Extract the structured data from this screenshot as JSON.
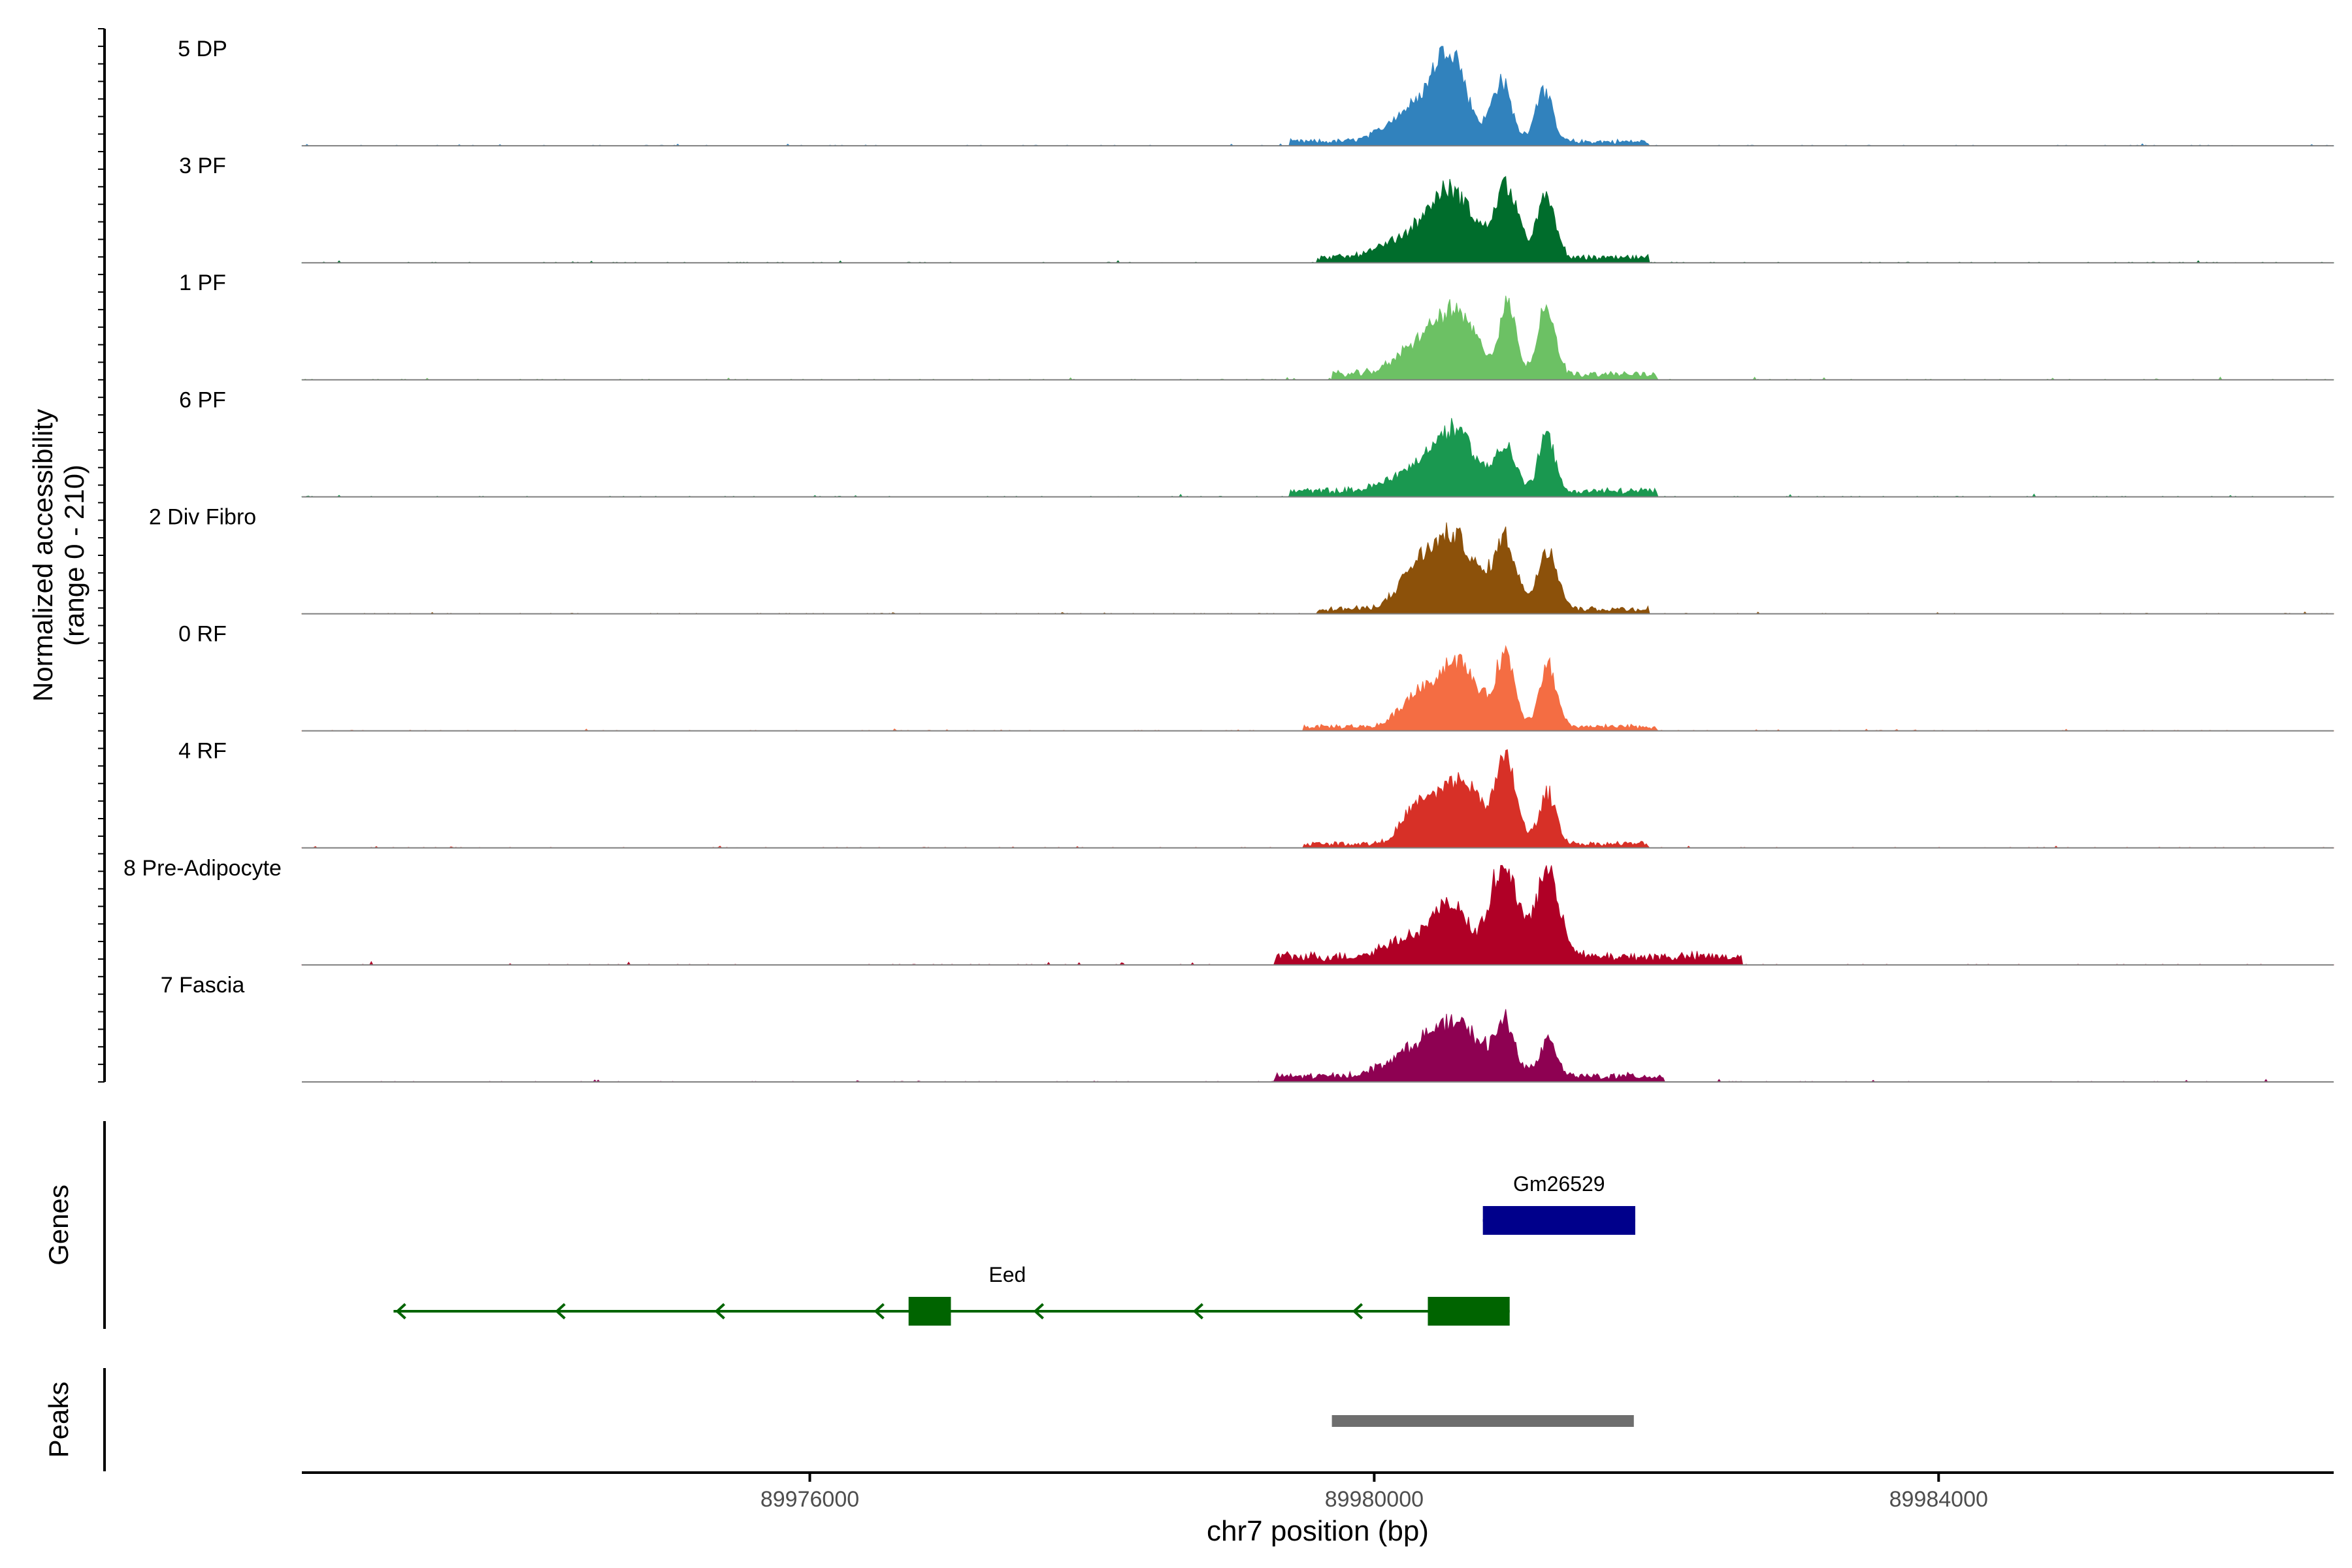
{
  "chart_data": {
    "type": "area",
    "title": "",
    "xlabel": "chr7 position (bp)",
    "ylabel_line1": "Normalized accessibility",
    "ylabel_line2": "(range 0 - 210)",
    "y_range": [
      0,
      210
    ],
    "xlim": [
      89972400,
      89986800
    ],
    "x_ticks": [
      89976000,
      89980000,
      89984000
    ],
    "x_tick_labels": [
      "89976000",
      "89980000",
      "89984000"
    ],
    "tracks": [
      {
        "name": "5 DP",
        "color": "#3182BD",
        "extent": [
          89979400,
          89981950
        ],
        "peaks": [
          [
            89980540,
            0.82,
            110
          ],
          [
            89980900,
            0.6,
            70
          ],
          [
            89981200,
            0.52,
            60
          ],
          [
            89980300,
            0.35,
            180
          ]
        ],
        "noise": 0.05
      },
      {
        "name": "3 PF",
        "color": "#006D2C",
        "extent": [
          89979600,
          89981950
        ],
        "peaks": [
          [
            89980550,
            0.62,
            160
          ],
          [
            89980940,
            0.7,
            80
          ],
          [
            89981220,
            0.6,
            65
          ],
          [
            89980250,
            0.18,
            200
          ]
        ],
        "noise": 0.06
      },
      {
        "name": "1 PF",
        "color": "#6CC164",
        "extent": [
          89979700,
          89982000
        ],
        "peaks": [
          [
            89980580,
            0.58,
            150
          ],
          [
            89980950,
            0.68,
            55
          ],
          [
            89981220,
            0.7,
            60
          ],
          [
            89980300,
            0.25,
            150
          ]
        ],
        "noise": 0.07
      },
      {
        "name": "6 PF",
        "color": "#1A9850",
        "extent": [
          89979400,
          89982000
        ],
        "peaks": [
          [
            89980580,
            0.56,
            140
          ],
          [
            89980930,
            0.45,
            70
          ],
          [
            89981220,
            0.58,
            55
          ],
          [
            89980300,
            0.22,
            180
          ]
        ],
        "noise": 0.07
      },
      {
        "name": "2 Div Fibro",
        "color": "#8C510A",
        "extent": [
          89979600,
          89981950
        ],
        "peaks": [
          [
            89980560,
            0.72,
            160
          ],
          [
            89980930,
            0.68,
            75
          ],
          [
            89981230,
            0.62,
            70
          ],
          [
            89980280,
            0.3,
            120
          ]
        ],
        "noise": 0.06
      },
      {
        "name": "0 RF",
        "color": "#F46D43",
        "extent": [
          89979500,
          89982000
        ],
        "peaks": [
          [
            89980580,
            0.66,
            150
          ],
          [
            89980930,
            0.7,
            65
          ],
          [
            89981230,
            0.62,
            60
          ],
          [
            89980280,
            0.25,
            110
          ]
        ],
        "noise": 0.05
      },
      {
        "name": "4 RF",
        "color": "#D73027",
        "extent": [
          89979500,
          89981950
        ],
        "peaks": [
          [
            89980600,
            0.64,
            170
          ],
          [
            89980940,
            0.76,
            70
          ],
          [
            89981230,
            0.5,
            60
          ],
          [
            89980290,
            0.28,
            100
          ]
        ],
        "noise": 0.05
      },
      {
        "name": "8 Pre-Adipocyte",
        "color": "#B00026",
        "extent": [
          89979300,
          89982600
        ],
        "peaks": [
          [
            89980550,
            0.5,
            120
          ],
          [
            89980920,
            0.95,
            90
          ],
          [
            89981230,
            0.86,
            85
          ],
          [
            89980250,
            0.2,
            160
          ]
        ],
        "noise": 0.1
      },
      {
        "name": "7 Fascia",
        "color": "#8E0152",
        "extent": [
          89979300,
          89982050
        ],
        "peaks": [
          [
            89980580,
            0.5,
            180
          ],
          [
            89980930,
            0.48,
            70
          ],
          [
            89981230,
            0.36,
            60
          ],
          [
            89980250,
            0.2,
            180
          ]
        ],
        "noise": 0.07
      }
    ],
    "genes_label": "Genes",
    "peaks_label": "Peaks",
    "genes": [
      {
        "name": "Gm26529",
        "color": "#00008B",
        "strand": "-",
        "start": 89980770,
        "end": 89981850,
        "exons": [
          [
            89980770,
            89981850
          ]
        ]
      },
      {
        "name": "Eed",
        "color": "#006400",
        "strand": "-",
        "start": 89973050,
        "end": 89980960,
        "label_pos": 89977400,
        "exons": [
          [
            89976700,
            89977000
          ],
          [
            89980380,
            89980960
          ]
        ]
      }
    ],
    "peak_regions": [
      [
        89979700,
        89981840
      ]
    ]
  }
}
